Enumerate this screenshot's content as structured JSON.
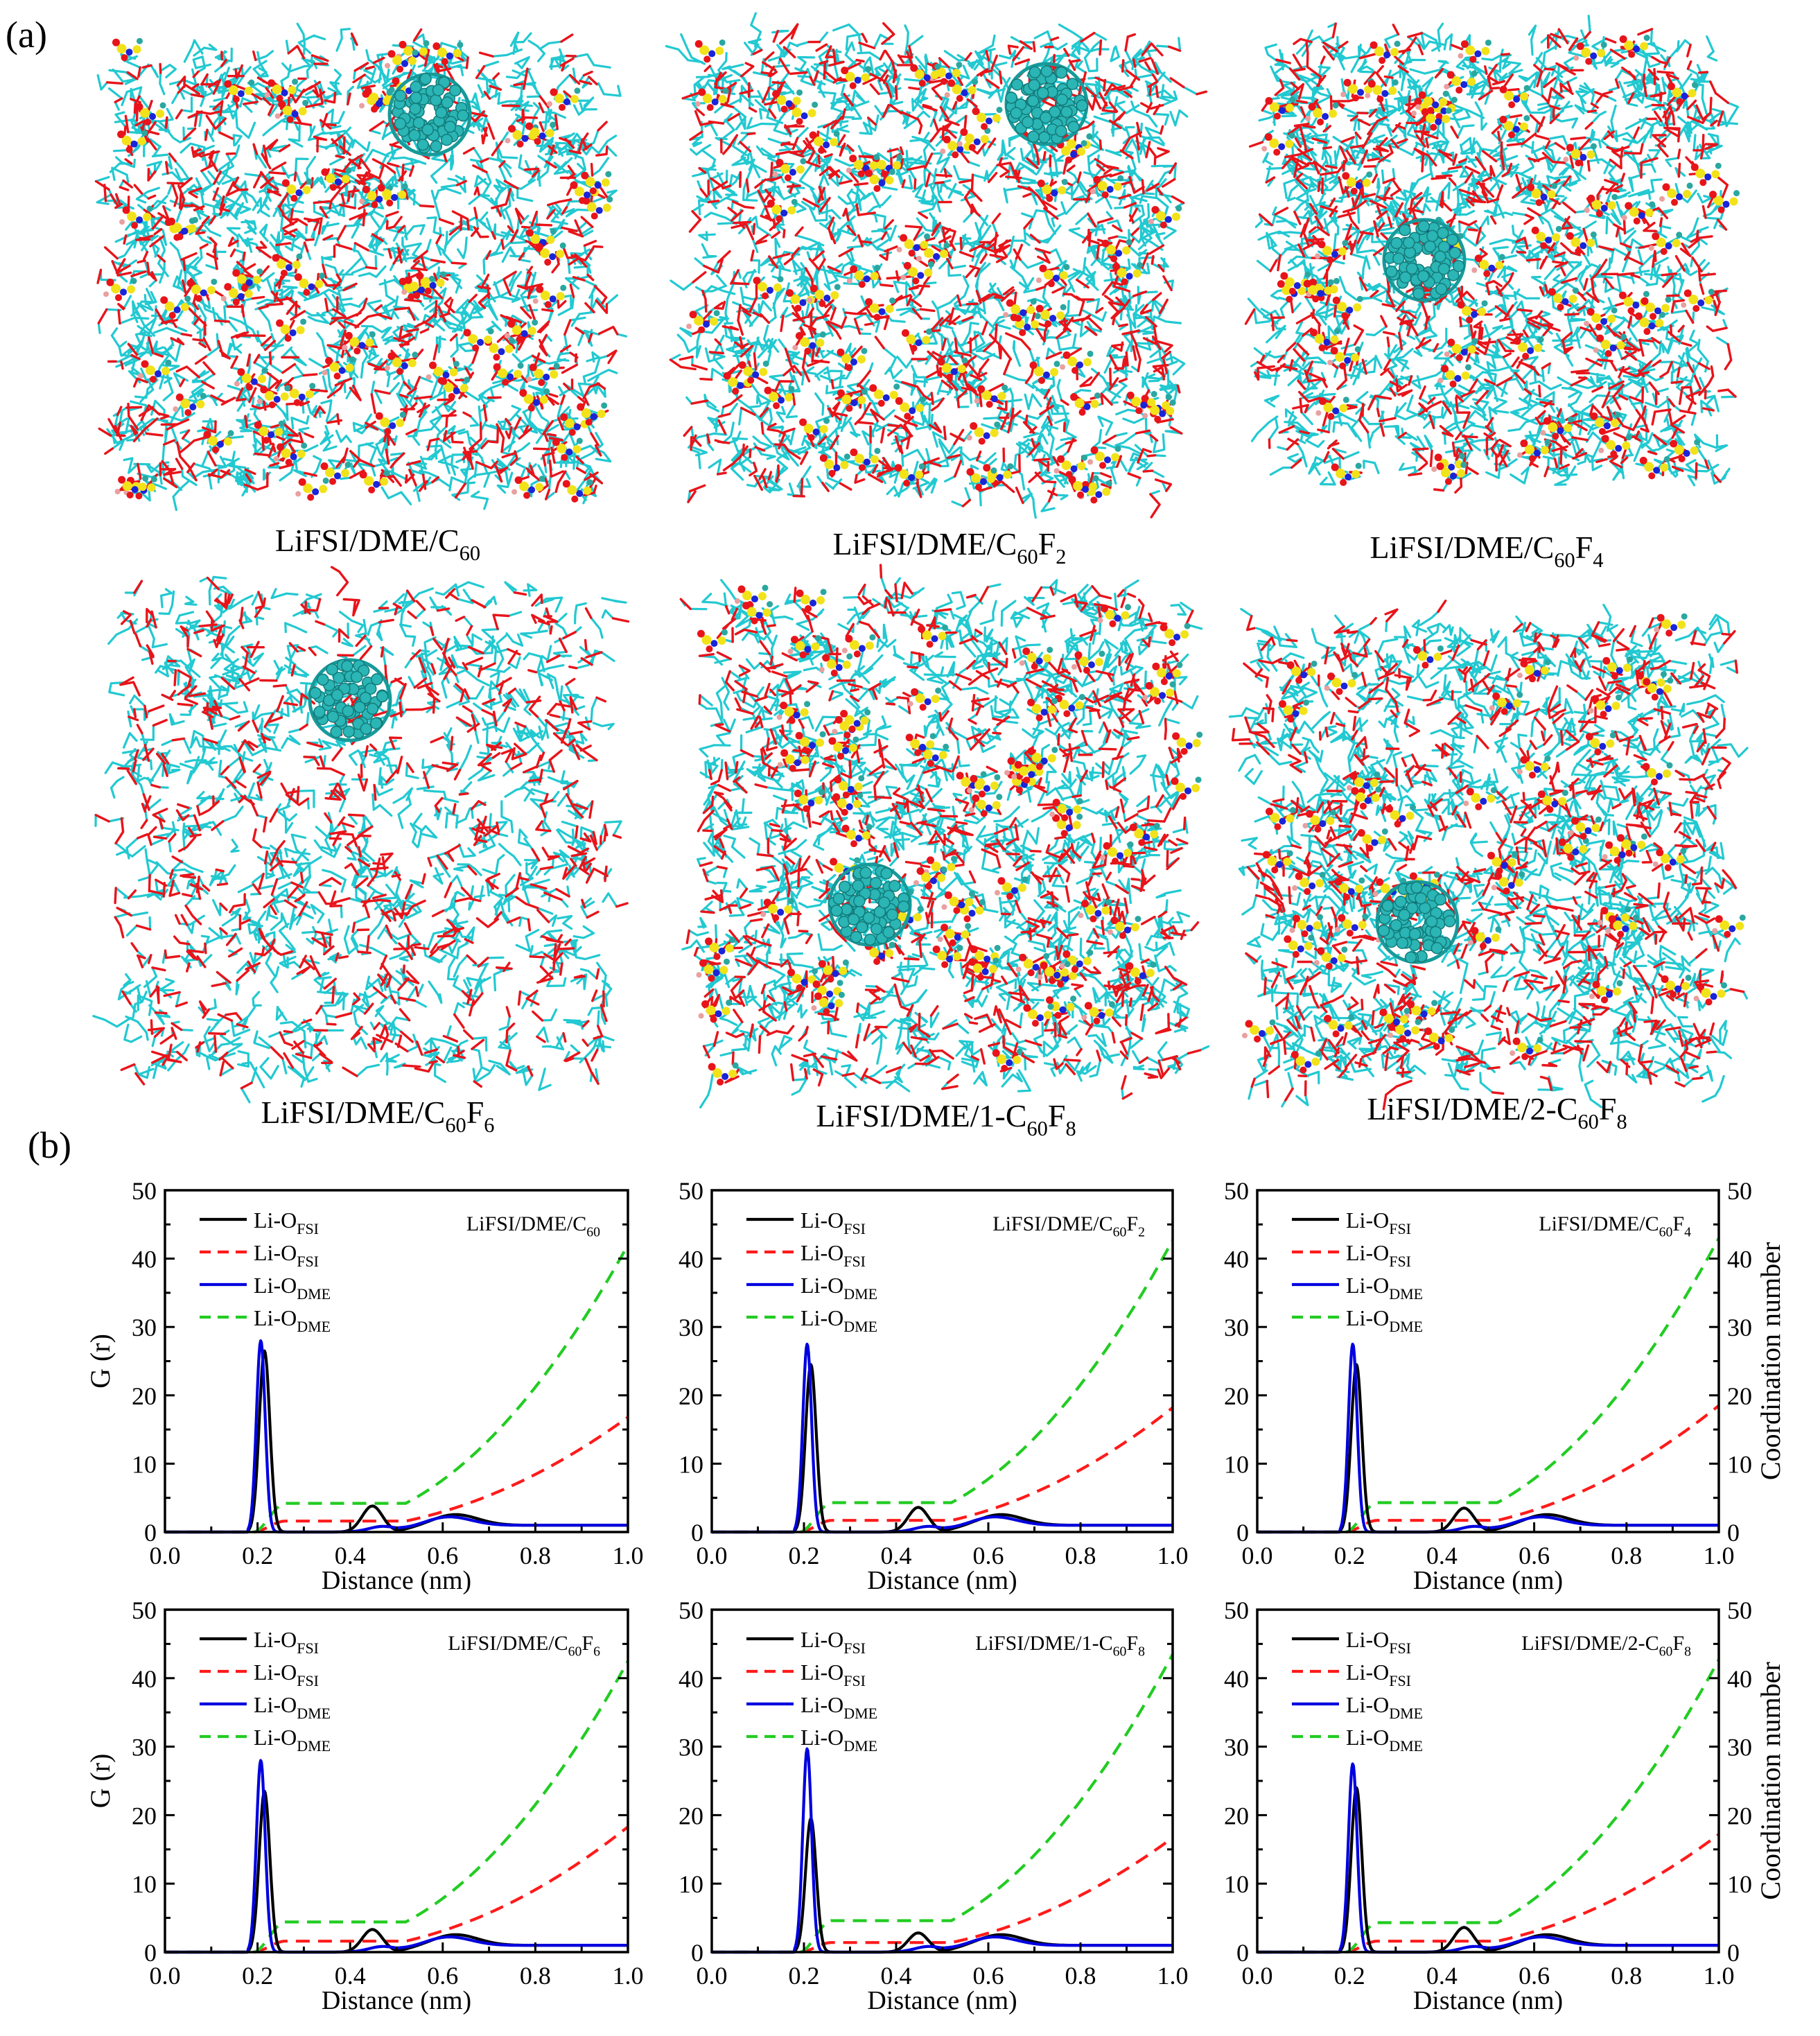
{
  "panel_labels": {
    "a": "(a)",
    "b": "(b)"
  },
  "snapshot_labels": [
    {
      "pre": "LiFSI/DME/",
      "parts": [
        [
          "C",
          ""
        ],
        [
          "60",
          "sub"
        ]
      ]
    },
    {
      "pre": "LiFSI/DME/",
      "parts": [
        [
          "C",
          ""
        ],
        [
          "60",
          "sub"
        ],
        [
          "F",
          ""
        ],
        [
          "2",
          "sub"
        ]
      ]
    },
    {
      "pre": "LiFSI/DME/",
      "parts": [
        [
          "C",
          ""
        ],
        [
          "60",
          "sub"
        ],
        [
          "F",
          ""
        ],
        [
          "4",
          "sub"
        ]
      ]
    },
    {
      "pre": "LiFSI/DME/",
      "parts": [
        [
          "C",
          ""
        ],
        [
          "60",
          "sub"
        ],
        [
          "F",
          ""
        ],
        [
          "6",
          "sub"
        ]
      ]
    },
    {
      "pre": "LiFSI/DME/1-",
      "parts": [
        [
          "C",
          ""
        ],
        [
          "60",
          "sub"
        ],
        [
          "F",
          ""
        ],
        [
          "8",
          "sub"
        ]
      ]
    },
    {
      "pre": "LiFSI/DME/2-",
      "parts": [
        [
          "C",
          ""
        ],
        [
          "60",
          "sub"
        ],
        [
          "F",
          ""
        ],
        [
          "8",
          "sub"
        ]
      ]
    }
  ],
  "snapshot_colors": {
    "solvent": "#22c9d1",
    "oxygen": "#e8141a",
    "sulfur": "#f2e21a",
    "nitrogen": "#1a24d8",
    "fluorine": "#2aa7a0",
    "fullerene": "#2bb5b5",
    "lithium": "#e8a0a0"
  },
  "axis_text": {
    "left_ylabel": "G (r)",
    "right_ylabel": "Coordination number",
    "xlabel": "Distance (nm)",
    "x_ticks": [
      "0.0",
      "0.2",
      "0.4",
      "0.6",
      "0.8",
      "1.0"
    ],
    "y_ticks": [
      "0",
      "10",
      "20",
      "30",
      "40",
      "50"
    ]
  },
  "legend": [
    {
      "base": "Li-O",
      "sub": "FSI",
      "color": "#000000",
      "dash": false
    },
    {
      "base": "Li-O",
      "sub": "FSI",
      "color": "#ff1a1a",
      "dash": true
    },
    {
      "base": "Li-O",
      "sub": "DME",
      "color": "#0000e0",
      "dash": false
    },
    {
      "base": "Li-O",
      "sub": "DME",
      "color": "#22cc22",
      "dash": true
    }
  ],
  "chart_data": [
    {
      "type": "line",
      "title_pre": "LiFSI/DME/",
      "title_parts": [
        [
          "C",
          ""
        ],
        [
          "60",
          "sub"
        ]
      ],
      "xlim": [
        0,
        1
      ],
      "ylim": [
        0,
        50
      ],
      "y2lim": [
        0,
        50
      ],
      "fsi_peak": 26.5,
      "dme_peak": 28.0,
      "cn_fsi_end": 16.8,
      "cn_dme_end": 42.0,
      "cn_fsi_plateau": 1.6,
      "cn_dme_plateau": 4.2,
      "fsi_second": 3.8
    },
    {
      "type": "line",
      "title_pre": "LiFSI/DME/",
      "title_parts": [
        [
          "C",
          ""
        ],
        [
          "60",
          "sub"
        ],
        [
          "F",
          ""
        ],
        [
          "2",
          "sub"
        ]
      ],
      "xlim": [
        0,
        1
      ],
      "ylim": [
        0,
        50
      ],
      "y2lim": [
        0,
        50
      ],
      "fsi_peak": 24.5,
      "dme_peak": 27.5,
      "cn_fsi_end": 18.2,
      "cn_dme_end": 42.7,
      "cn_fsi_plateau": 1.7,
      "cn_dme_plateau": 4.3,
      "fsi_second": 3.6
    },
    {
      "type": "line",
      "title_pre": "LiFSI/DME/",
      "title_parts": [
        [
          "C",
          ""
        ],
        [
          "60",
          "sub"
        ],
        [
          "F",
          ""
        ],
        [
          "4",
          "sub"
        ]
      ],
      "xlim": [
        0,
        1
      ],
      "ylim": [
        0,
        50
      ],
      "y2lim": [
        0,
        50
      ],
      "fsi_peak": 24.5,
      "dme_peak": 27.5,
      "cn_fsi_end": 18.5,
      "cn_dme_end": 43.0,
      "cn_fsi_plateau": 1.7,
      "cn_dme_plateau": 4.3,
      "fsi_second": 3.5
    },
    {
      "type": "line",
      "title_pre": "LiFSI/DME/",
      "title_parts": [
        [
          "C",
          ""
        ],
        [
          "60",
          "sub"
        ],
        [
          "F",
          ""
        ],
        [
          "6",
          "sub"
        ]
      ],
      "xlim": [
        0,
        1
      ],
      "ylim": [
        0,
        50
      ],
      "y2lim": [
        0,
        50
      ],
      "fsi_peak": 23.5,
      "dme_peak": 28.0,
      "cn_fsi_end": 18.3,
      "cn_dme_end": 42.5,
      "cn_fsi_plateau": 1.6,
      "cn_dme_plateau": 4.4,
      "fsi_second": 3.3
    },
    {
      "type": "line",
      "title_pre": "LiFSI/DME/1-",
      "title_parts": [
        [
          "C",
          ""
        ],
        [
          "60",
          "sub"
        ],
        [
          "F",
          ""
        ],
        [
          "8",
          "sub"
        ]
      ],
      "xlim": [
        0,
        1
      ],
      "ylim": [
        0,
        50
      ],
      "y2lim": [
        0,
        50
      ],
      "fsi_peak": 19.5,
      "dme_peak": 29.7,
      "cn_fsi_end": 16.7,
      "cn_dme_end": 43.5,
      "cn_fsi_plateau": 1.4,
      "cn_dme_plateau": 4.6,
      "fsi_second": 2.8
    },
    {
      "type": "line",
      "title_pre": "LiFSI/DME/2-",
      "title_parts": [
        [
          "C",
          ""
        ],
        [
          "60",
          "sub"
        ],
        [
          "F",
          ""
        ],
        [
          "8",
          "sub"
        ]
      ],
      "xlim": [
        0,
        1
      ],
      "ylim": [
        0,
        50
      ],
      "y2lim": [
        0,
        50
      ],
      "fsi_peak": 24.0,
      "dme_peak": 27.5,
      "cn_fsi_end": 17.2,
      "cn_dme_end": 42.7,
      "cn_fsi_plateau": 1.6,
      "cn_dme_plateau": 4.3,
      "fsi_second": 3.6
    }
  ]
}
